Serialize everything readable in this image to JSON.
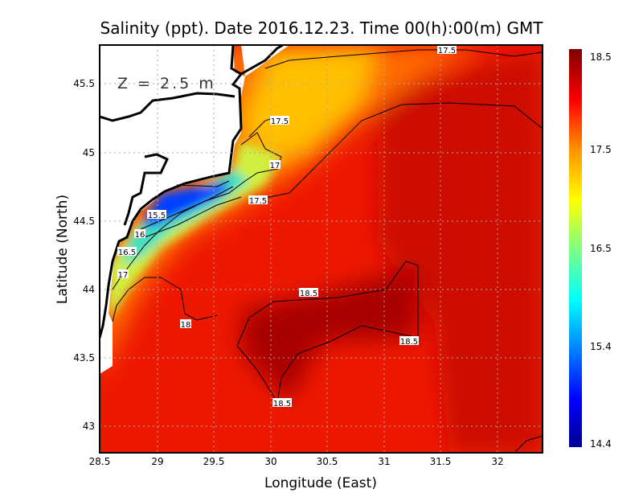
{
  "title": "Salinity (ppt). Date 2016.12.23. Time 00(h):00(m) GMT",
  "depth_label": "Z = 2.5 m",
  "xlabel": "Longitude (East)",
  "ylabel": "Latitude (North)",
  "chart_data": {
    "type": "heatmap",
    "title": "Salinity (ppt). Date 2016.12.23. Time 00(h):00(m) GMT",
    "xlabel": "Longitude (East)",
    "ylabel": "Latitude (North)",
    "xlim": [
      28.5,
      32.41
    ],
    "ylim": [
      42.8,
      45.78
    ],
    "xticks": [
      "28.5",
      "29",
      "29.5",
      "30",
      "30.5",
      "31",
      "31.5",
      "32"
    ],
    "yticks": [
      "45.5",
      "45",
      "44.5",
      "44",
      "43.5",
      "43"
    ],
    "grid": true,
    "colorbar": {
      "min": 14.4,
      "max": 18.5,
      "labels": [
        "18.5",
        "17.5",
        "16.5",
        "15.4",
        "14.4"
      ]
    },
    "contour_labels": [
      "17.5",
      "17.5",
      "17",
      "17.5",
      "15.5",
      "16",
      "16.5",
      "17",
      "18",
      "18.5",
      "18.5",
      "18.5"
    ]
  }
}
